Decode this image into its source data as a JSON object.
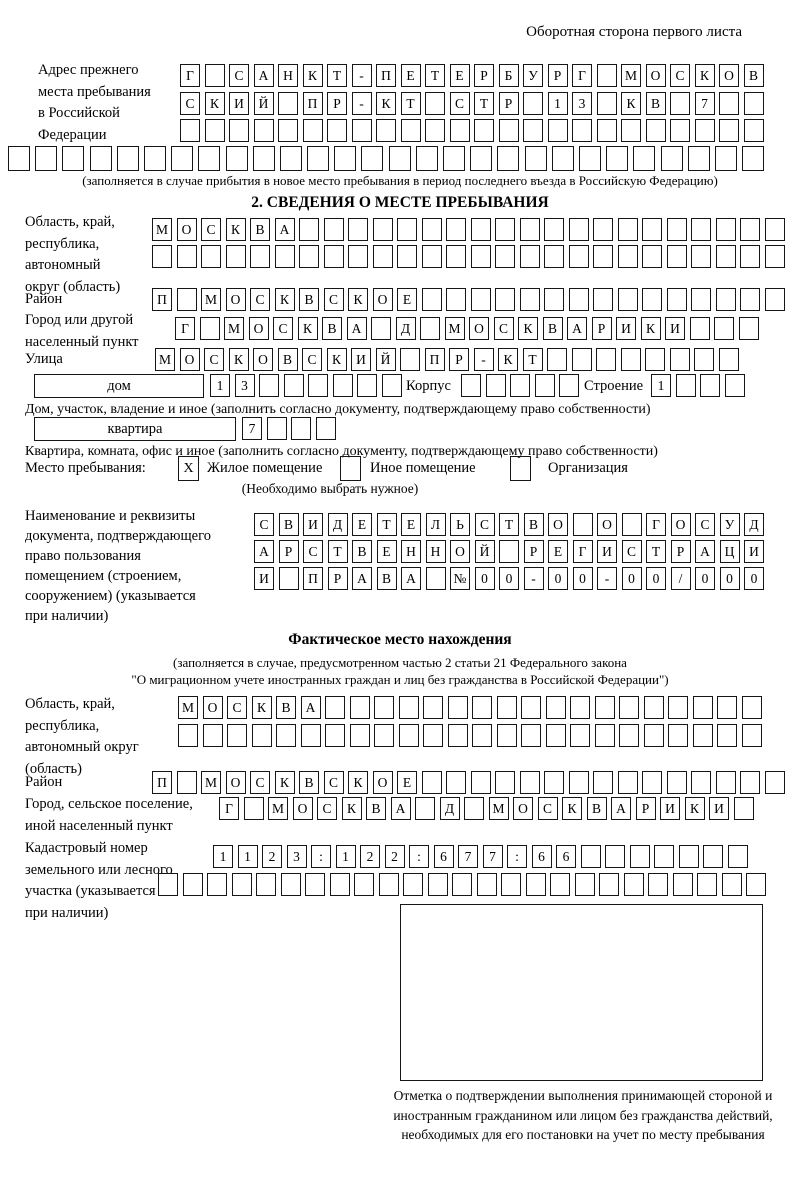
{
  "title": "Оборотная сторона первого листа",
  "prev_address": {
    "label": "Адрес прежнего\nместа пребывания\nв Российской\nФедерации",
    "rows": [
      {
        "t": "Г САНКТ-ПЕТЕРБУРГ МОСКОВ",
        "n": 24
      },
      {
        "t": "СКИЙ ПР-КТ СТР 13 КВ 7",
        "n": 24
      },
      24,
      28
    ],
    "note": "(заполняется в случае прибытия в новое место пребывания в период последнего въезда в Российскую Федерацию)"
  },
  "section2": {
    "heading": "2. СВЕДЕНИЯ О МЕСТЕ ПРЕБЫВАНИЯ",
    "region": {
      "label": "Область, край,\nреспублика,\nавтономный\nокруг (область)",
      "row1": {
        "t": "МОСКВА",
        "n": 26
      },
      "row2": 26
    },
    "district": {
      "label": "Район",
      "cells": {
        "t": "П МОСКВСКОЕ",
        "n": 26
      }
    },
    "city": {
      "label": "Город или другой\nнаселенный пункт",
      "cells": {
        "t": "Г МОСКВА Д МОСКВАРИКИ",
        "n": 24
      }
    },
    "street": {
      "label": "Улица",
      "cells": {
        "t": "МОСКОВСКИЙ ПР-КТ",
        "n": 24
      }
    },
    "house": {
      "box_label": "дом",
      "cells": {
        "t": "13",
        "n": 8
      },
      "korpus_label": "Корпус",
      "korpus_cells": 5,
      "stroenie_label": "Строение",
      "stroenie_cells": {
        "t": "1",
        "n": 4
      },
      "note": "Дом, участок, владение и иное (заполнить согласно документу, подтверждающему право собственности)"
    },
    "apartment": {
      "box_label": "квартира",
      "cells": {
        "t": "7",
        "n": 4
      },
      "note": "Квартира, комната, офис и иное (заполнить согласно документу, подтверждающему право собственности)"
    },
    "stay_type": {
      "label": "Место пребывания:",
      "mark1": "X",
      "option1": "Жилое помещение",
      "mark2": "",
      "option2": "Иное помещение",
      "mark3": "",
      "option3": "Организация",
      "note": "(Необходимо выбрать нужное)"
    },
    "document": {
      "label": "Наименование и реквизиты\nдокумента, подтверждающего\nправо пользования\nпомещением (строением,\nсооружением) (указывается\nпри наличии)",
      "rows": [
        {
          "t": "СВИДЕТЕЛЬСТВО О ГОСУД",
          "n": 21
        },
        {
          "t": "АРСТВЕННОЙ РЕГИСТРАЦИ",
          "n": 21
        },
        {
          "t": "И ПРАВА №00-00-00/000",
          "n": 21
        }
      ]
    }
  },
  "actual_location": {
    "heading": "Фактическое место нахождения",
    "note1": "(заполняется в случае, предусмотренном частью 2 статьи 21 Федерального закона",
    "note2": "\"О миграционном учете иностранных граждан и лиц без гражданства в Российской Федерации\")",
    "region": {
      "label": "Область, край,\nреспублика,\nавтономный округ\n(область)",
      "row1": {
        "t": "МОСКВА",
        "n": 24
      },
      "row2": 24
    },
    "district": {
      "label": "Район",
      "cells": {
        "t": "П МОСКВСКОЕ",
        "n": 26
      }
    },
    "city": {
      "label": "Город, сельское поселение,\nиной населенный пункт",
      "cells": {
        "t": "Г МОСКВА Д МОСКВАРИКИ",
        "n": 22
      }
    },
    "cadastral": {
      "label": "Кадастровый номер\nземельного или лесного\nучастка (указывается\nпри наличии)",
      "row1": {
        "t": "1123:122:677:66",
        "n": 22
      },
      "row2": 25
    }
  },
  "stamp": {
    "caption": "Отметка о подтверждении выполнения принимающей стороной и иностранным гражданином или лицом без гражданства действий, необходимых для его постановки на учет по месту пребывания"
  }
}
